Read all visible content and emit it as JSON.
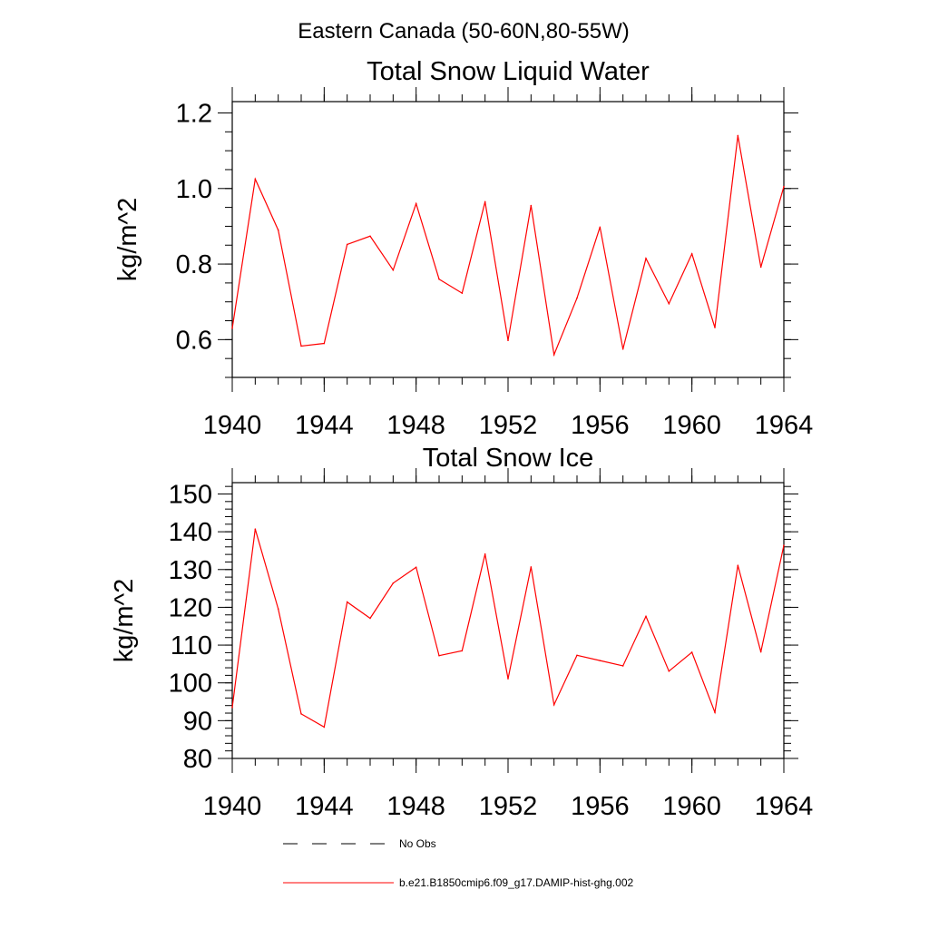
{
  "figure": {
    "suptitle": "Eastern Canada (50-60N,80-55W)"
  },
  "chart_data": [
    {
      "type": "line",
      "title": "Total Snow Liquid Water",
      "xlabel": "",
      "ylabel": "kg/m^2",
      "xlim": [
        1940,
        1964
      ],
      "ylim": [
        0.5,
        1.23
      ],
      "x_ticks": [
        1940,
        1944,
        1948,
        1952,
        1956,
        1960,
        1964
      ],
      "y_ticks": [
        0.6,
        0.8,
        1.0,
        1.2
      ],
      "y_tick_labels": [
        "0.6",
        "0.8",
        "1.0",
        "1.2"
      ],
      "x_minor_step": 1,
      "y_minor_step": 0.05,
      "grid": false,
      "series": [
        {
          "name": "b.e21.B1850cmip6.f09_g17.DAMIP-hist-ghg.002",
          "color": "#ff0000",
          "x": [
            1940,
            1941,
            1942,
            1943,
            1944,
            1945,
            1946,
            1947,
            1948,
            1949,
            1950,
            1951,
            1952,
            1953,
            1954,
            1955,
            1956,
            1957,
            1958,
            1959,
            1960,
            1961,
            1962,
            1963,
            1964
          ],
          "values": [
            0.63,
            1.025,
            0.89,
            0.583,
            0.59,
            0.852,
            0.874,
            0.784,
            0.96,
            0.76,
            0.723,
            0.965,
            0.598,
            0.955,
            0.56,
            0.71,
            0.898,
            0.575,
            0.815,
            0.695,
            0.827,
            0.632,
            1.14,
            0.792,
            1.005
          ]
        }
      ]
    },
    {
      "type": "line",
      "title": "Total Snow Ice",
      "xlabel": "",
      "ylabel": "kg/m^2",
      "xlim": [
        1940,
        1964
      ],
      "ylim": [
        80,
        153
      ],
      "x_ticks": [
        1940,
        1944,
        1948,
        1952,
        1956,
        1960,
        1964
      ],
      "y_ticks": [
        80,
        90,
        100,
        110,
        120,
        130,
        140,
        150
      ],
      "y_tick_labels": [
        "80",
        "90",
        "100",
        "110",
        "120",
        "130",
        "140",
        "150"
      ],
      "x_minor_step": 1,
      "y_minor_step": 2,
      "grid": false,
      "series": [
        {
          "name": "b.e21.B1850cmip6.f09_g17.DAMIP-hist-ghg.002",
          "color": "#ff0000",
          "x": [
            1940,
            1941,
            1942,
            1943,
            1944,
            1945,
            1946,
            1947,
            1948,
            1949,
            1950,
            1951,
            1952,
            1953,
            1954,
            1955,
            1956,
            1957,
            1958,
            1959,
            1960,
            1961,
            1962,
            1963,
            1964
          ],
          "values": [
            93.5,
            140.7,
            119.6,
            91.8,
            88.3,
            121.4,
            117.1,
            126.4,
            130.6,
            107.2,
            108.5,
            134.1,
            101.1,
            130.7,
            94.2,
            107.3,
            105.9,
            104.5,
            117.6,
            103.1,
            108.1,
            92.2,
            131.1,
            108.2,
            136.4
          ]
        }
      ]
    }
  ],
  "legend": {
    "placement": "bottom-center",
    "entries": [
      {
        "label": "No Obs",
        "style": "dashed",
        "color": "#000000"
      },
      {
        "label": "b.e21.B1850cmip6.f09_g17.DAMIP-hist-ghg.002",
        "style": "solid",
        "color": "#ff0000"
      }
    ]
  }
}
